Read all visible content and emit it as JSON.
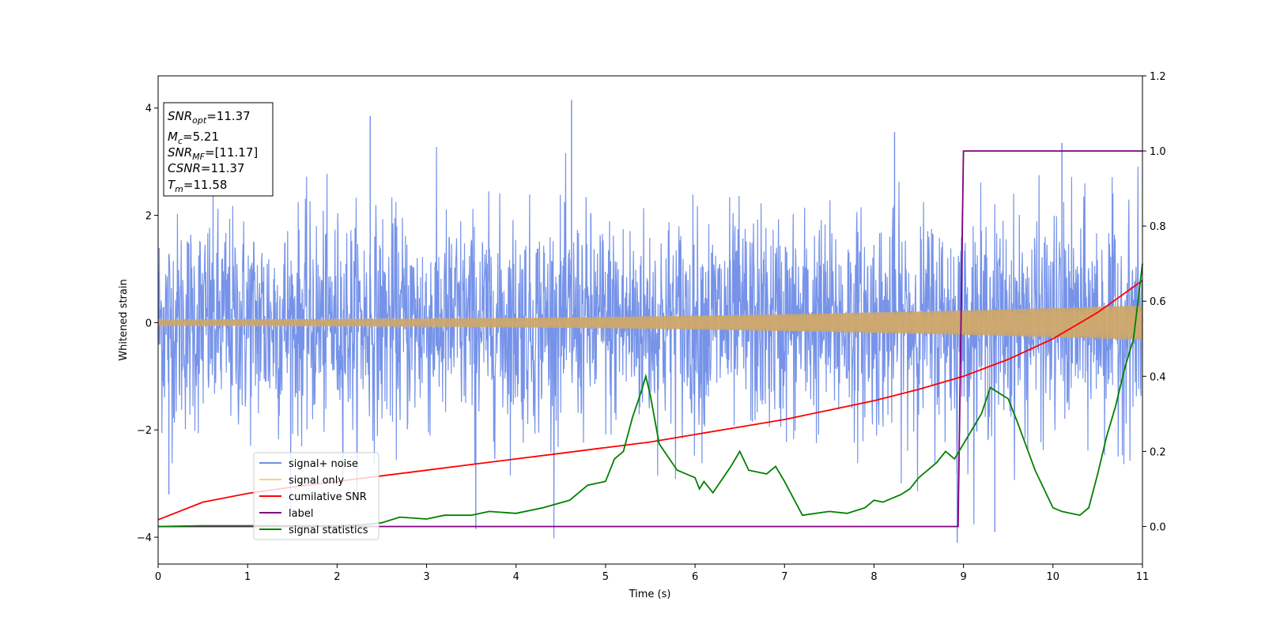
{
  "chart_data": {
    "type": "line",
    "xlabel": "Time (s)",
    "ylabel": "Whitened strain",
    "xlim": [
      0,
      11
    ],
    "ylim": [
      -4.5,
      4.6
    ],
    "y2lim": [
      -0.1,
      1.2
    ],
    "xticks": [
      "0",
      "1",
      "2",
      "3",
      "4",
      "5",
      "6",
      "7",
      "8",
      "9",
      "10",
      "11"
    ],
    "yticks": [
      "−4",
      "−2",
      "0",
      "2",
      "4"
    ],
    "y2ticks": [
      "0.0",
      "0.2",
      "0.4",
      "0.6",
      "0.8",
      "1.0",
      "1.2"
    ],
    "legend": {
      "position": "lower-left",
      "entries": [
        {
          "name": "signal+ noise",
          "color": "#6f8de8"
        },
        {
          "name": "signal only",
          "color": "#ffcc80"
        },
        {
          "name": "cumilative SNR",
          "color": "#ff0000"
        },
        {
          "name": "label",
          "color": "#800080"
        },
        {
          "name": "signal statistics",
          "color": "#008000"
        }
      ]
    },
    "annotation": {
      "snr_opt": {
        "name": "SNR",
        "sub": "opt",
        "value": "11.37"
      },
      "mc": {
        "name": "M",
        "sub": "c",
        "value": "5.21"
      },
      "snr_mf": {
        "name": "SNR",
        "sub": "MF",
        "value": "[11.17]"
      },
      "csnr": {
        "name": "CSNR",
        "value": "11.37"
      },
      "tm": {
        "name": "T",
        "sub": "m",
        "value": "11.58"
      }
    },
    "series": [
      {
        "name": "signal+ noise",
        "axis": "left",
        "description_values": "white noise, std ~1, peaks up to 4.15 at t=4.62",
        "color": "#6f8de8"
      },
      {
        "name": "signal only",
        "axis": "left",
        "amplitude_start": 0.06,
        "amplitude_end": 0.32,
        "color": "#ffcc80"
      },
      {
        "name": "cumilative SNR",
        "axis": "right",
        "x": [
          0,
          0.5,
          1,
          1.5,
          2,
          2.5,
          3,
          3.5,
          4,
          4.5,
          5,
          5.5,
          6,
          6.5,
          7,
          7.5,
          8,
          8.5,
          9,
          9.5,
          10,
          10.5,
          11
        ],
        "y": [
          0.018,
          0.065,
          0.088,
          0.105,
          0.12,
          0.135,
          0.15,
          0.165,
          0.18,
          0.195,
          0.21,
          0.225,
          0.245,
          0.265,
          0.285,
          0.31,
          0.335,
          0.365,
          0.4,
          0.445,
          0.5,
          0.57,
          0.655
        ],
        "color": "#ff0000"
      },
      {
        "name": "label",
        "axis": "right",
        "x": [
          0,
          8.94,
          9.0,
          11
        ],
        "y": [
          0,
          0,
          1,
          1
        ],
        "color": "#800080"
      },
      {
        "name": "signal statistics",
        "axis": "right",
        "x": [
          0,
          0.5,
          1,
          1.5,
          2,
          2.3,
          2.5,
          2.7,
          3,
          3.2,
          3.5,
          3.7,
          4,
          4.3,
          4.6,
          4.8,
          5.0,
          5.1,
          5.2,
          5.3,
          5.4,
          5.45,
          5.5,
          5.6,
          5.8,
          6.0,
          6.05,
          6.1,
          6.2,
          6.4,
          6.5,
          6.6,
          6.8,
          6.9,
          7.0,
          7.2,
          7.5,
          7.7,
          7.9,
          8.0,
          8.1,
          8.2,
          8.3,
          8.4,
          8.5,
          8.7,
          8.8,
          8.9,
          9.0,
          9.1,
          9.2,
          9.3,
          9.5,
          9.6,
          9.8,
          10.0,
          10.1,
          10.3,
          10.4,
          10.5,
          10.6,
          10.7,
          10.8,
          10.9,
          11.0
        ],
        "y": [
          0.0,
          0.002,
          0.002,
          0.002,
          0.002,
          0.005,
          0.01,
          0.025,
          0.02,
          0.03,
          0.03,
          0.04,
          0.035,
          0.05,
          0.07,
          0.11,
          0.12,
          0.18,
          0.2,
          0.29,
          0.36,
          0.4,
          0.35,
          0.22,
          0.15,
          0.13,
          0.1,
          0.12,
          0.09,
          0.16,
          0.2,
          0.15,
          0.14,
          0.16,
          0.12,
          0.03,
          0.04,
          0.035,
          0.05,
          0.07,
          0.065,
          0.075,
          0.085,
          0.1,
          0.13,
          0.17,
          0.2,
          0.18,
          0.22,
          0.26,
          0.3,
          0.37,
          0.34,
          0.28,
          0.15,
          0.05,
          0.04,
          0.03,
          0.05,
          0.14,
          0.24,
          0.32,
          0.42,
          0.5,
          0.7
        ],
        "color": "#008000"
      }
    ]
  }
}
